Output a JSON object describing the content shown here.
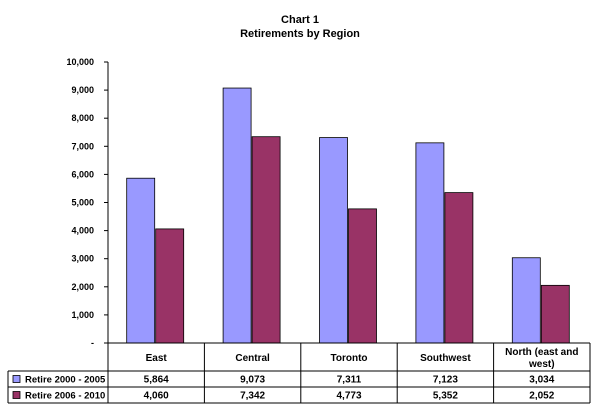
{
  "chart_data": {
    "type": "bar",
    "title": "Chart 1",
    "subtitle": "Retirements by Region",
    "categories": [
      "East",
      "Central",
      "Toronto",
      "Southwest",
      "North (east and west)"
    ],
    "category_lines": [
      [
        "East"
      ],
      [
        "Central"
      ],
      [
        "Toronto"
      ],
      [
        "Southwest"
      ],
      [
        "North (east and",
        "west)"
      ]
    ],
    "series": [
      {
        "name": "Retire 2000 - 2005",
        "color": "#9999ff",
        "values": [
          5864,
          9073,
          7311,
          7123,
          3034
        ],
        "labels": [
          "5,864",
          "9,073",
          "7,311",
          "7,123",
          "3,034"
        ]
      },
      {
        "name": "Retire 2006 - 2010",
        "color": "#993366",
        "values": [
          4060,
          7342,
          4773,
          5352,
          2052
        ],
        "labels": [
          "4,060",
          "7,342",
          "4,773",
          "5,352",
          "2,052"
        ]
      }
    ],
    "ylim": [
      0,
      10000
    ],
    "yticks": [
      0,
      1000,
      2000,
      3000,
      4000,
      5000,
      6000,
      7000,
      8000,
      9000,
      10000
    ],
    "ytick_labels": [
      "-",
      "1,000",
      "2,000",
      "3,000",
      "4,000",
      "5,000",
      "6,000",
      "7,000",
      "8,000",
      "9,000",
      "10,000"
    ],
    "grid": false,
    "legend": "data-table"
  }
}
